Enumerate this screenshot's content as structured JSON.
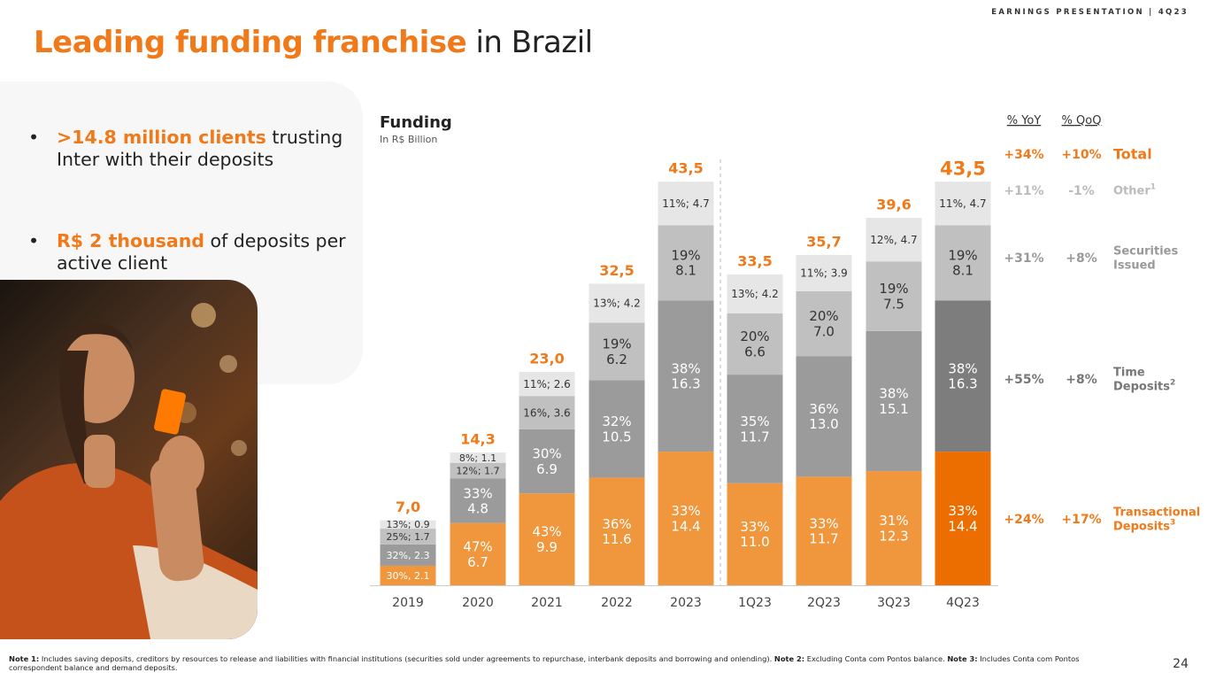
{
  "header": {
    "tag": "EARNINGS PRESENTATION | 4Q23"
  },
  "title": {
    "accent": "Leading funding franchise",
    "rest": " in Brazil"
  },
  "bullets": [
    {
      "highlight": ">14.8 million clients",
      "text": " trusting Inter with their deposits"
    },
    {
      "highlight": "R$ 2 thousand",
      "text": " of deposits per active client"
    }
  ],
  "colors": {
    "orange": "#f0963c",
    "orange_dark": "#ed6e00",
    "grey_dark": "#9b9b9b",
    "grey_darker": "#7d7d7d",
    "grey_mid": "#c0c0c0",
    "grey_light": "#e6e6e6",
    "accent": "#f07a1a"
  },
  "chart_data": {
    "type": "bar",
    "stacked": true,
    "title": "Funding",
    "subtitle": "In R$ Billion",
    "categories": [
      "2019",
      "2020",
      "2021",
      "2022",
      "2023",
      "1Q23",
      "2Q23",
      "3Q23",
      "4Q23"
    ],
    "totals": [
      7.0,
      14.3,
      23.0,
      32.5,
      43.5,
      33.5,
      35.7,
      39.6,
      43.5
    ],
    "total_labels": [
      "7,0",
      "14,3",
      "23,0",
      "32,5",
      "43,5",
      "33,5",
      "35,7",
      "39,6",
      "43,5"
    ],
    "series": [
      {
        "name": "Transactional Deposits",
        "values": [
          2.1,
          6.7,
          9.9,
          11.6,
          14.4,
          11.0,
          11.7,
          12.3,
          14.4
        ],
        "labels": [
          "30%, 2.1",
          "47%\n6.7",
          "43%\n9.9",
          "36%\n11.6",
          "33%\n14.4",
          "33%\n11.0",
          "33%\n11.7",
          "31%\n12.3",
          "33%\n14.4"
        ]
      },
      {
        "name": "Time Deposits",
        "values": [
          2.3,
          4.8,
          6.9,
          10.5,
          16.3,
          11.7,
          13.0,
          15.1,
          16.3
        ],
        "labels": [
          "32%, 2.3",
          "33%\n4.8",
          "30%\n6.9",
          "32%\n10.5",
          "38%\n16.3",
          "35%\n11.7",
          "36%\n13.0",
          "38%\n15.1",
          "38%\n16.3"
        ]
      },
      {
        "name": "Securities Issued",
        "values": [
          1.7,
          1.7,
          3.6,
          6.2,
          8.1,
          6.6,
          7.0,
          7.5,
          8.1
        ],
        "labels": [
          "25%; 1.7",
          "12%; 1.7",
          "16%, 3.6",
          "19%\n6.2",
          "19%\n8.1",
          "20%\n6.6",
          "20%\n7.0",
          "19%\n7.5",
          "19%\n8.1"
        ]
      },
      {
        "name": "Other",
        "values": [
          0.9,
          1.1,
          2.6,
          4.2,
          4.7,
          4.2,
          3.9,
          4.7,
          4.7
        ],
        "labels": [
          "13%; 0.9",
          "8%; 1.1",
          "11%; 2.6",
          "13%; 4.2",
          "11%; 4.7",
          "13%; 4.2",
          "11%; 3.9",
          "12%, 4.7",
          "11%, 4.7"
        ]
      }
    ],
    "growth_headers": {
      "yoy": "% YoY",
      "qoq": "% QoQ"
    },
    "growth": [
      {
        "yoy": "+34%",
        "qoq": "+10%",
        "label": "Total"
      },
      {
        "yoy": "+11%",
        "qoq": "-1%",
        "label": "Other",
        "sup": "1"
      },
      {
        "yoy": "+31%",
        "qoq": "+8%",
        "label": "Securities\nIssued"
      },
      {
        "yoy": "+55%",
        "qoq": "+8%",
        "label": "Time\nDeposits",
        "sup": "2"
      },
      {
        "yoy": "+24%",
        "qoq": "+17%",
        "label": "Transactional\nDeposits",
        "sup": "3"
      }
    ]
  },
  "footnote": {
    "n1_label": "Note 1:",
    "n1_text": " Includes saving deposits, creditors by resources to release and liabilities with financial institutions (securities sold under agreements to repurchase, interbank deposits and borrowing and onlending). ",
    "n2_label": "Note 2:",
    "n2_text": " Excluding Conta com Pontos balance. ",
    "n3_label": "Note 3:",
    "n3_text": " Includes Conta com Pontos correspondent balance and demand deposits."
  },
  "page_number": "24"
}
